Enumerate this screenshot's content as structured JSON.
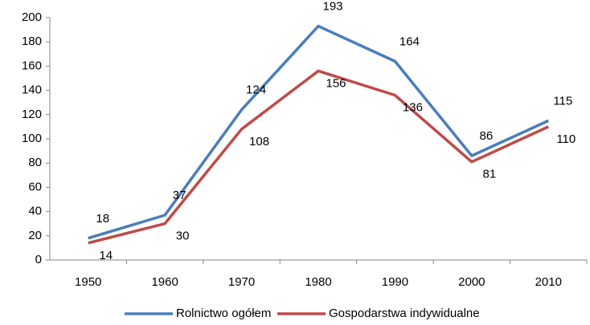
{
  "chart_data": {
    "type": "line",
    "categories": [
      "1950",
      "1960",
      "1970",
      "1980",
      "1990",
      "2000",
      "2010"
    ],
    "series": [
      {
        "name": "Rolnictwo ogółem",
        "color": "#4a7ebb",
        "values": [
          18,
          37,
          124,
          193,
          164,
          86,
          115
        ]
      },
      {
        "name": "Gospodarstwa indywidualne",
        "color": "#be4b48",
        "values": [
          14,
          30,
          108,
          156,
          136,
          81,
          110
        ]
      }
    ],
    "ylim": [
      0,
      200
    ],
    "yticks": [
      0,
      20,
      40,
      60,
      80,
      100,
      120,
      140,
      160,
      180,
      200
    ],
    "grid": false,
    "legend": "bottom"
  }
}
